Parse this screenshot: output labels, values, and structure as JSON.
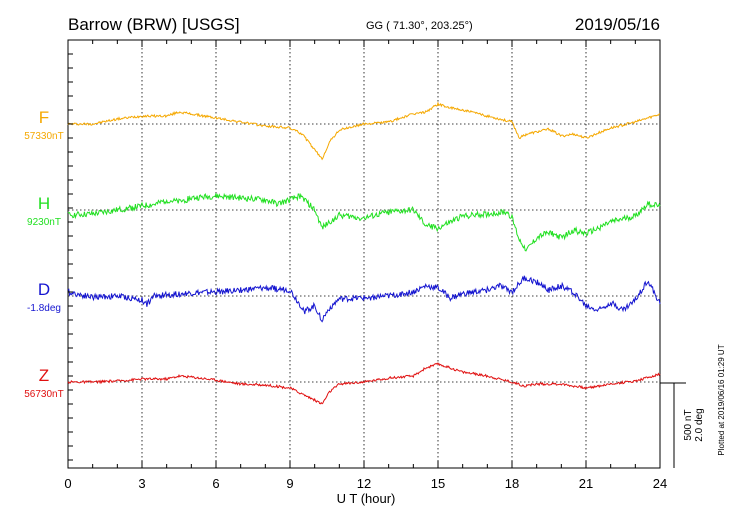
{
  "header": {
    "station": "Barrow (BRW)  [USGS]",
    "coords": "GG ( 71.30°, 203.25°)",
    "date": "2019/05/16"
  },
  "plot_note": "Plotted at 2019/06/16 01:29 UT",
  "scale": {
    "nt": "500 nT",
    "deg": "2.0 deg"
  },
  "colors": {
    "F": "#f5a800",
    "H": "#22e022",
    "D": "#1515d0",
    "Z": "#e01010"
  },
  "chart_data": {
    "type": "line",
    "title": "Barrow (BRW)  [USGS]",
    "xlabel": "U T (hour)",
    "xlim": [
      0,
      24
    ],
    "x_ticks": [
      0,
      3,
      6,
      9,
      12,
      15,
      18,
      21,
      24
    ],
    "grid": true,
    "series": [
      {
        "name": "F",
        "baseline": "57330nT",
        "points": [
          [
            0,
            0
          ],
          [
            1,
            0
          ],
          [
            2,
            5
          ],
          [
            3,
            8
          ],
          [
            4,
            8
          ],
          [
            4.5,
            12
          ],
          [
            5,
            10
          ],
          [
            6,
            6
          ],
          [
            7,
            2
          ],
          [
            8,
            -2
          ],
          [
            9,
            -4
          ],
          [
            9.5,
            -10
          ],
          [
            10,
            -26
          ],
          [
            10.3,
            -35
          ],
          [
            10.6,
            -18
          ],
          [
            11,
            -6
          ],
          [
            12,
            0
          ],
          [
            13,
            2
          ],
          [
            14,
            10
          ],
          [
            14.5,
            12
          ],
          [
            15,
            20
          ],
          [
            15.5,
            16
          ],
          [
            16,
            14
          ],
          [
            17,
            8
          ],
          [
            18,
            2
          ],
          [
            18.3,
            -14
          ],
          [
            18.6,
            -10
          ],
          [
            19,
            -8
          ],
          [
            19.5,
            -5
          ],
          [
            20,
            -12
          ],
          [
            20.5,
            -10
          ],
          [
            21,
            -14
          ],
          [
            22,
            -4
          ],
          [
            23,
            2
          ],
          [
            24,
            10
          ]
        ]
      },
      {
        "name": "H",
        "baseline": "9230nT",
        "points": [
          [
            0,
            -5
          ],
          [
            1,
            -4
          ],
          [
            2,
            0
          ],
          [
            3,
            4
          ],
          [
            3.6,
            6
          ],
          [
            4,
            10
          ],
          [
            4.5,
            8
          ],
          [
            5,
            12
          ],
          [
            6,
            14
          ],
          [
            7,
            12
          ],
          [
            8,
            10
          ],
          [
            8.5,
            6
          ],
          [
            9,
            10
          ],
          [
            9.4,
            14
          ],
          [
            9.7,
            8
          ],
          [
            10,
            0
          ],
          [
            10.3,
            -18
          ],
          [
            10.6,
            -12
          ],
          [
            11,
            -5
          ],
          [
            12,
            -8
          ],
          [
            13,
            -2
          ],
          [
            14,
            0
          ],
          [
            14.5,
            -15
          ],
          [
            15,
            -18
          ],
          [
            16,
            -6
          ],
          [
            17,
            -4
          ],
          [
            17.8,
            -2
          ],
          [
            18,
            -8
          ],
          [
            18.3,
            -30
          ],
          [
            18.6,
            -40
          ],
          [
            19,
            -28
          ],
          [
            19.5,
            -22
          ],
          [
            20,
            -28
          ],
          [
            20.5,
            -20
          ],
          [
            21,
            -24
          ],
          [
            22,
            -12
          ],
          [
            23,
            -6
          ],
          [
            23.5,
            6
          ],
          [
            24,
            4
          ]
        ]
      },
      {
        "name": "D",
        "baseline": "-1.8deg",
        "points": [
          [
            0,
            4
          ],
          [
            1,
            -1
          ],
          [
            2,
            0
          ],
          [
            3,
            -4
          ],
          [
            3.2,
            -8
          ],
          [
            3.5,
            0
          ],
          [
            4,
            1
          ],
          [
            5,
            3
          ],
          [
            6,
            4
          ],
          [
            7,
            6
          ],
          [
            8,
            8
          ],
          [
            9,
            6
          ],
          [
            9.3,
            -5
          ],
          [
            9.6,
            -15
          ],
          [
            10,
            -10
          ],
          [
            10.3,
            -24
          ],
          [
            10.6,
            -12
          ],
          [
            11,
            -3
          ],
          [
            12,
            -2
          ],
          [
            13,
            0
          ],
          [
            14,
            4
          ],
          [
            14.5,
            10
          ],
          [
            15,
            8
          ],
          [
            15.5,
            -2
          ],
          [
            16,
            2
          ],
          [
            17,
            6
          ],
          [
            17.5,
            10
          ],
          [
            18,
            4
          ],
          [
            18.5,
            18
          ],
          [
            19,
            14
          ],
          [
            19.5,
            6
          ],
          [
            20,
            10
          ],
          [
            20.5,
            4
          ],
          [
            21,
            -10
          ],
          [
            21.5,
            -14
          ],
          [
            22,
            -6
          ],
          [
            22.5,
            -14
          ],
          [
            23,
            -4
          ],
          [
            23.5,
            16
          ],
          [
            24,
            -8
          ]
        ]
      },
      {
        "name": "Z",
        "baseline": "56730nT",
        "points": [
          [
            0,
            0
          ],
          [
            1,
            0
          ],
          [
            2,
            1
          ],
          [
            3,
            3
          ],
          [
            4,
            3
          ],
          [
            4.5,
            6
          ],
          [
            5,
            5
          ],
          [
            6,
            2
          ],
          [
            7,
            -2
          ],
          [
            8,
            -3
          ],
          [
            9,
            -6
          ],
          [
            9.5,
            -12
          ],
          [
            10,
            -18
          ],
          [
            10.3,
            -22
          ],
          [
            10.6,
            -10
          ],
          [
            11,
            -2
          ],
          [
            12,
            0
          ],
          [
            13,
            4
          ],
          [
            14,
            6
          ],
          [
            14.5,
            14
          ],
          [
            15,
            18
          ],
          [
            15.5,
            14
          ],
          [
            16,
            10
          ],
          [
            17,
            6
          ],
          [
            18,
            0
          ],
          [
            18.5,
            -4
          ],
          [
            19,
            -2
          ],
          [
            20,
            -2
          ],
          [
            21,
            -6
          ],
          [
            22,
            -2
          ],
          [
            23,
            1
          ],
          [
            24,
            8
          ]
        ]
      }
    ]
  }
}
